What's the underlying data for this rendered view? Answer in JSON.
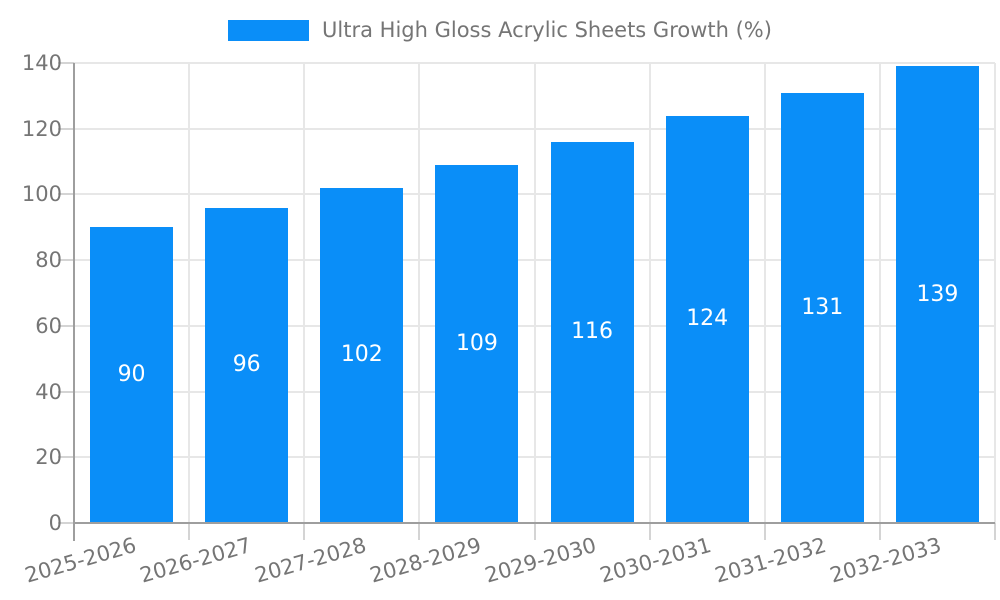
{
  "chart_data": {
    "type": "bar",
    "title": "",
    "legend_label": "Ultra High Gloss Acrylic Sheets Growth (%)",
    "legend_position": "top-center",
    "categories": [
      "2025-2026",
      "2026-2027",
      "2027-2028",
      "2028-2029",
      "2029-2030",
      "2030-2031",
      "2031-2032",
      "2032-2033"
    ],
    "values": [
      90,
      96,
      102,
      109,
      116,
      124,
      131,
      139
    ],
    "xlabel": "",
    "ylabel": "",
    "ylim": [
      0,
      140
    ],
    "ytick_step": 20,
    "yticks": [
      0,
      20,
      40,
      60,
      80,
      100,
      120,
      140
    ],
    "grid": true,
    "x_label_rotation_deg": -16,
    "value_labels_shown": true,
    "colors": {
      "bar": "#0A8EF8",
      "value_label": "#FFFFFF",
      "axis": "#9E9E9E",
      "gridline": "#E7E7E7",
      "tick_mark": "#D4D4D4",
      "tick_text": "#757575",
      "legend_text": "#757575",
      "background": "#FFFFFF"
    }
  }
}
